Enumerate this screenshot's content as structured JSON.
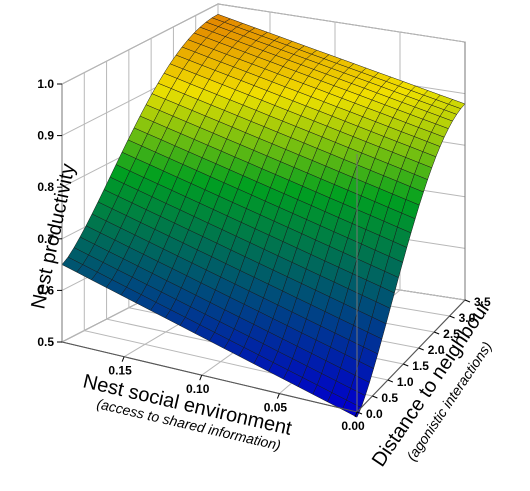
{
  "chart_data": {
    "type": "surface",
    "z_label": "Nest productivity",
    "x_label": "Nest social environment",
    "x_sublabel": "(access to shared information)",
    "y_label": "Distance to neighbour",
    "y_sublabel": "(agonistic interactions)",
    "z_ticks": [
      "0.5",
      "0.6",
      "0.7",
      "0.8",
      "0.9",
      "1.0"
    ],
    "x_ticks": [
      "0.15",
      "0.10",
      "0.05",
      "0.00"
    ],
    "y_ticks": [
      "0.0",
      "0.5",
      "1.0",
      "1.5",
      "2.0",
      "2.5",
      "3.0",
      "3.5"
    ],
    "x_range": [
      0.19,
      0.0
    ],
    "y_range": [
      0.0,
      3.5
    ],
    "z_range": [
      0.5,
      1.0
    ],
    "grid": true,
    "colormap": [
      "#0000cc",
      "#00a020",
      "#f0e000",
      "#e07000"
    ],
    "corner_values": {
      "x0.19_y0.0": 0.65,
      "x0.0_y0.0": 0.49,
      "x0.19_y3.5": 0.98,
      "x0.0_y3.5": 0.88
    }
  }
}
